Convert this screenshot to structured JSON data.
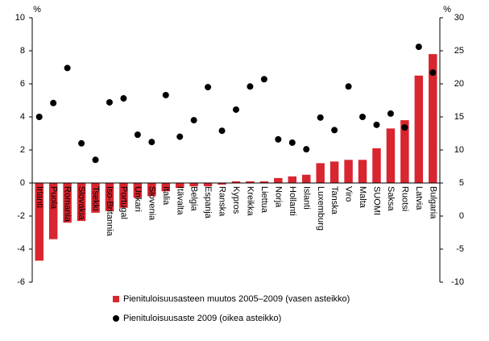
{
  "chart_data": {
    "type": "bar+scatter",
    "ylabel": "%",
    "y2label": "%",
    "categories": [
      "Irlanti",
      "Puola",
      "Romania",
      "Slovakia",
      "Tsekki",
      "Iso-Britannia",
      "Portugal",
      "Unkari",
      "Slovenia",
      "Italia",
      "Itävalta",
      "Belgia",
      "Espanja",
      "Ranska",
      "Kypros",
      "Kreikka",
      "Liettua",
      "Norja",
      "Hollanti",
      "Islanti",
      "Luxemburg",
      "Tanska",
      "Viro",
      "Malta",
      "SUOMI",
      "Saksa",
      "Ruotsi",
      "Latvia",
      "Bulgaria"
    ],
    "series": [
      {
        "name": "Pienituloisuusasteen muutos 2005–2009  (vasen asteikko)",
        "type": "bar",
        "color": "#d9252f",
        "values": [
          -4.7,
          -3.4,
          -2.4,
          -2.3,
          -1.8,
          -1.7,
          -1.5,
          -0.9,
          -0.8,
          -0.5,
          -0.3,
          -0.2,
          -0.2,
          -0.1,
          0.1,
          0.1,
          0.1,
          0.3,
          0.4,
          0.5,
          1.2,
          1.3,
          1.4,
          1.4,
          2.1,
          3.3,
          3.8,
          6.5,
          7.8
        ]
      },
      {
        "name": "Pienituloisuusaste 2009  (oikea asteikko)",
        "type": "scatter",
        "axis": "y2",
        "color": "#000000",
        "values": [
          15,
          17.1,
          22.4,
          11,
          8.5,
          17.2,
          17.8,
          12.3,
          11.2,
          18.3,
          12,
          14.5,
          19.5,
          12.9,
          16.1,
          19.6,
          20.7,
          11.6,
          11.1,
          10.1,
          14.9,
          13,
          19.6,
          15,
          13.8,
          15.5,
          13.4,
          25.6,
          21.7
        ]
      }
    ],
    "ylim": [
      -6,
      10
    ],
    "yticks": [
      -6,
      -4,
      -2,
      0,
      2,
      4,
      6,
      8,
      10
    ],
    "y2lim": [
      -10,
      30
    ],
    "y2ticks": [
      -10,
      -5,
      0,
      5,
      10,
      15,
      20,
      25,
      30
    ],
    "grid": false
  }
}
